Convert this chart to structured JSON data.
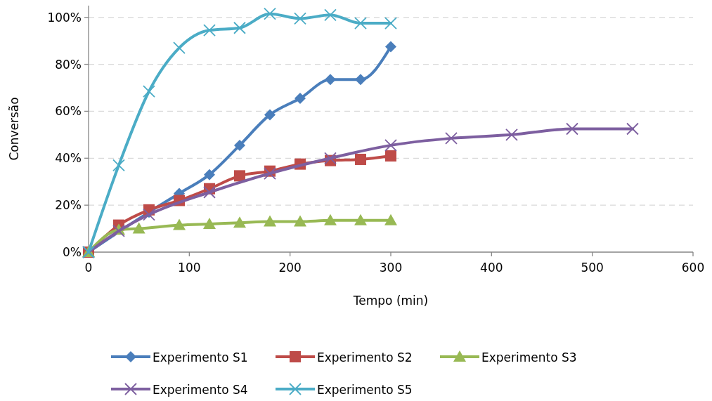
{
  "chart_data": {
    "type": "line",
    "xlabel": "Tempo (min)",
    "ylabel": "Conversão",
    "xlim": [
      0,
      600
    ],
    "xticks": [
      0,
      100,
      200,
      300,
      400,
      500,
      600
    ],
    "ylim": [
      0,
      105
    ],
    "yticks": [
      {
        "value": 0,
        "label": "0%"
      },
      {
        "value": 20,
        "label": "20%"
      },
      {
        "value": 40,
        "label": "40%"
      },
      {
        "value": 60,
        "label": "60%"
      },
      {
        "value": 80,
        "label": "80%"
      },
      {
        "value": 100,
        "label": "100%"
      }
    ],
    "grid": "y",
    "legend": "bottom",
    "series": [
      {
        "name": "Experimento S1",
        "color": "#4a7ebb",
        "marker": "diamond",
        "x": [
          0,
          60,
          90,
          120,
          150,
          180,
          210,
          240,
          270,
          300
        ],
        "values": [
          0,
          17,
          25,
          33,
          45.5,
          58.5,
          65.5,
          73.5,
          73.5,
          87.5
        ]
      },
      {
        "name": "Experimento S2",
        "color": "#be4b48",
        "marker": "square",
        "x": [
          0,
          30,
          60,
          90,
          120,
          150,
          180,
          210,
          240,
          270,
          300
        ],
        "values": [
          0,
          11.5,
          18,
          22,
          27,
          32.5,
          34.5,
          37.5,
          39,
          39.5,
          41
        ]
      },
      {
        "name": "Experimento S3",
        "color": "#98b954",
        "marker": "triangle",
        "x": [
          0,
          30,
          50,
          90,
          120,
          150,
          180,
          210,
          240,
          270,
          300
        ],
        "values": [
          0,
          9.5,
          10,
          11.5,
          12,
          12.5,
          13,
          13,
          13.5,
          13.5,
          13.5
        ]
      },
      {
        "name": "Experimento S4",
        "color": "#7d5fa0",
        "marker": "cross",
        "x": [
          0,
          30,
          60,
          120,
          180,
          240,
          300,
          360,
          420,
          480,
          540
        ],
        "values": [
          0,
          9,
          16,
          25.5,
          33.5,
          40,
          45.5,
          48.5,
          50,
          52.5,
          52.5
        ]
      },
      {
        "name": "Experimento S5",
        "color": "#4bacc6",
        "marker": "cross",
        "x": [
          0,
          30,
          60,
          90,
          120,
          150,
          180,
          210,
          240,
          270,
          300
        ],
        "values": [
          0,
          37,
          68.5,
          87,
          94.5,
          95.5,
          101.5,
          99.5,
          101,
          97.5,
          97.5
        ]
      }
    ]
  }
}
